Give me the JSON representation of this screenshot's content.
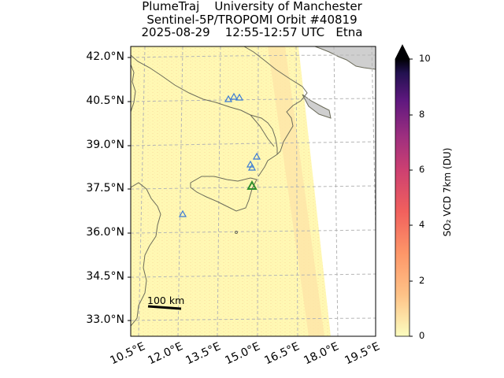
{
  "title": {
    "line1": "PlumeTraj    University of Manchester",
    "line2": "Sentinel-5P/TROPOMI Orbit #40819",
    "line3": "2025-08-29    12:55-12:57 UTC   Etna"
  },
  "map": {
    "lat_ticks": [
      "42.0°N",
      "40.5°N",
      "39.0°N",
      "37.5°N",
      "36.0°N",
      "34.5°N",
      "33.0°N"
    ],
    "lon_ticks": [
      "10.5°E",
      "12.0°E",
      "13.5°E",
      "15.0°E",
      "16.5°E",
      "18.0°E",
      "19.5°E"
    ],
    "scale_bar_label": "100 km",
    "target_volcano": "Etna",
    "colors": {
      "land": "#cfcfcf",
      "swath_low": "#fff8b3",
      "coastline": "#6b6b5a",
      "volcano_marker": "#2f8f2f",
      "other_volcanoes": "#3a7bd5",
      "grid": "#b5b5b5"
    }
  },
  "colorbar": {
    "label": "SO₂ VCD 7km (DU)",
    "ticks": [
      "0",
      "2",
      "4",
      "6",
      "8",
      "10"
    ],
    "min": 0,
    "max": 10,
    "extend": "max",
    "colormap": "magma_r"
  }
}
